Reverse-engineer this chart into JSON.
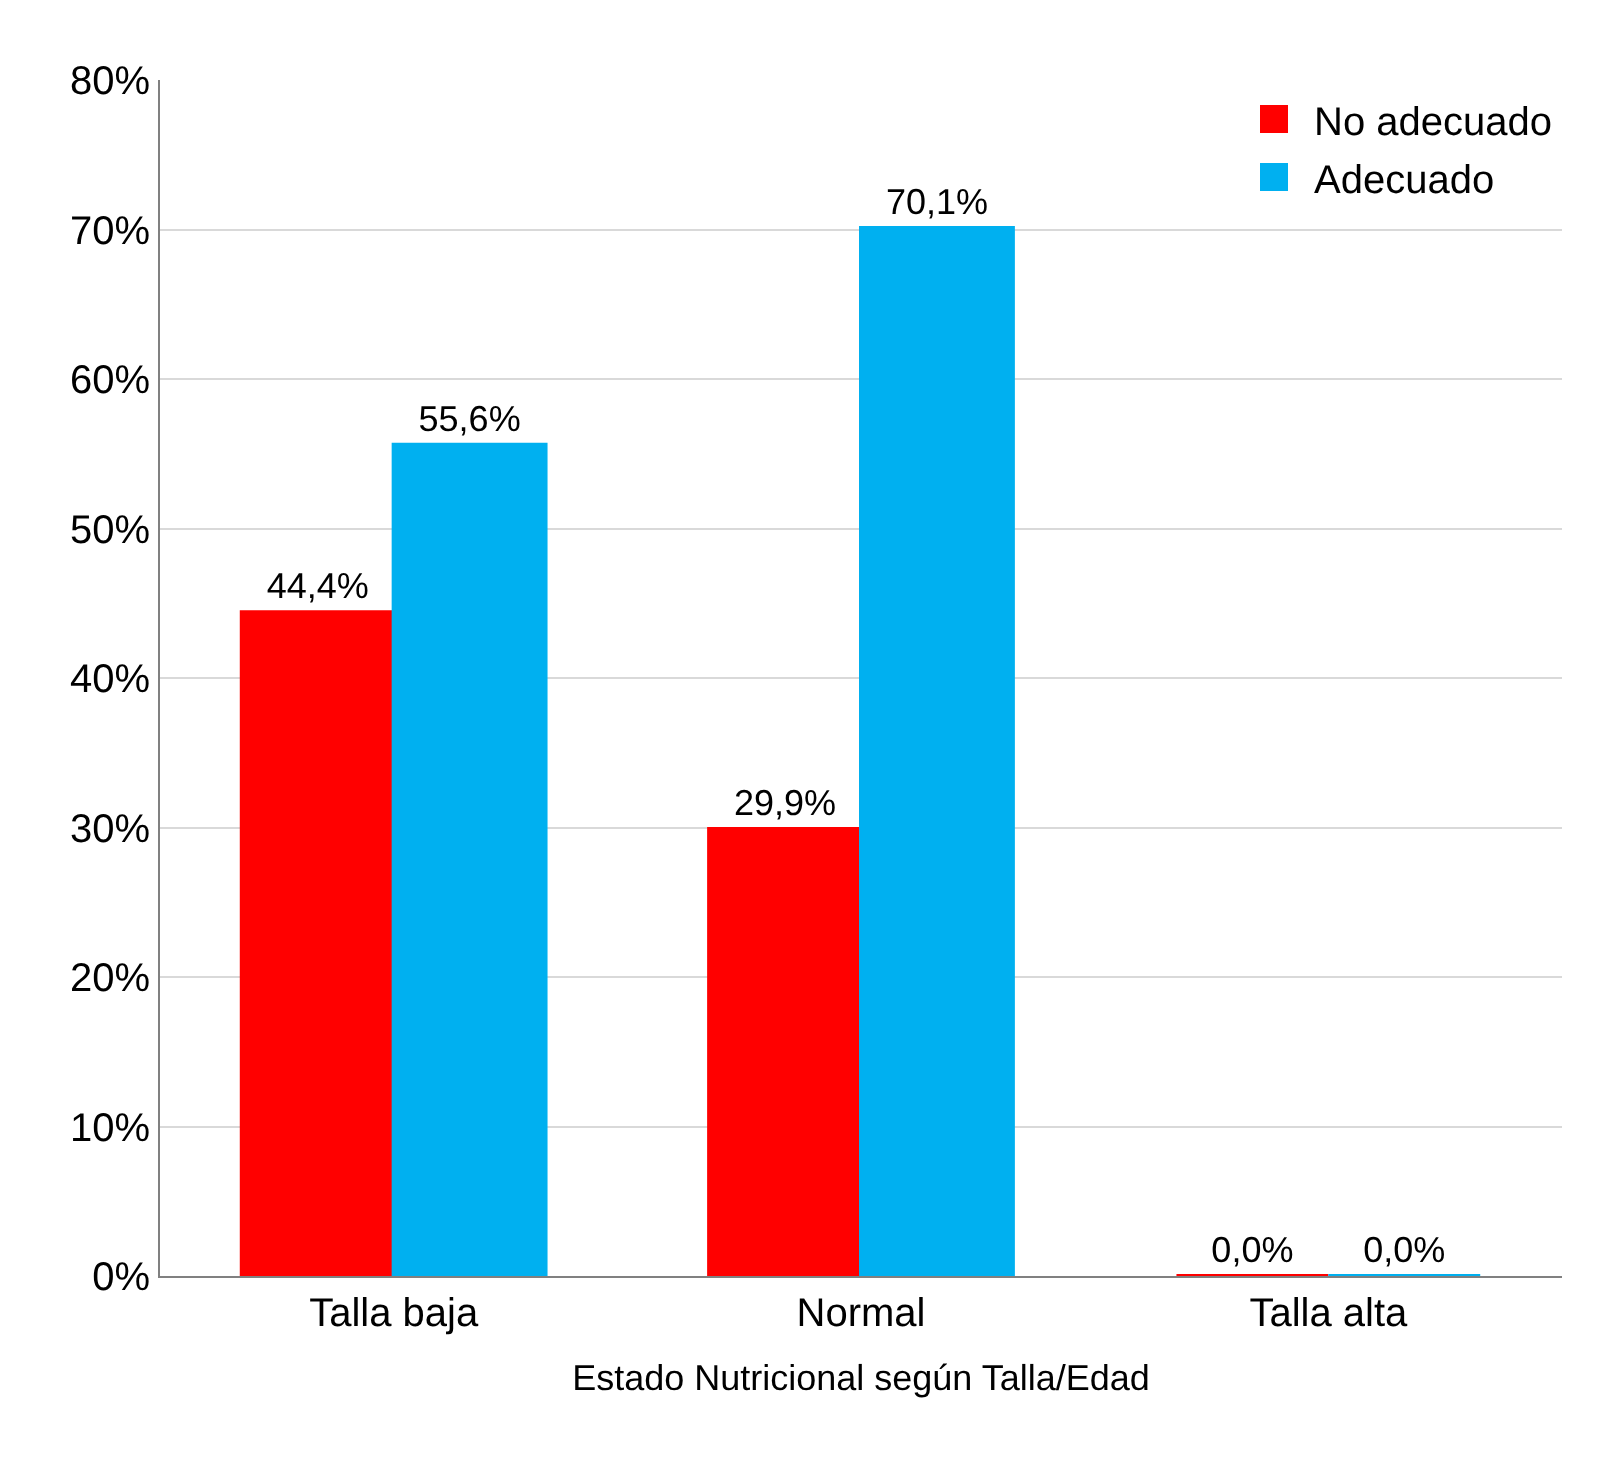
{
  "chart_data": {
    "type": "bar",
    "xlabel": "Estado Nutricional según Talla/Edad",
    "categories": [
      "Talla baja",
      "Normal",
      "Talla alta"
    ],
    "series": [
      {
        "name": "No adecuado",
        "color": "#ff0000",
        "values": [
          44.4,
          29.9,
          0.0
        ],
        "value_labels": [
          "44,4%",
          "29,9%",
          "0,0%"
        ]
      },
      {
        "name": "Adecuado",
        "color": "#00b0f0",
        "values": [
          55.6,
          70.1,
          0.0
        ],
        "value_labels": [
          "55,6%",
          "70,1%",
          "0,0%"
        ]
      }
    ],
    "ylim": [
      0,
      80
    ],
    "yticks": [
      {
        "value": 0,
        "label": "0%"
      },
      {
        "value": 10,
        "label": "10%"
      },
      {
        "value": 20,
        "label": "20%"
      },
      {
        "value": 30,
        "label": "30%"
      },
      {
        "value": 40,
        "label": "40%"
      },
      {
        "value": 50,
        "label": "50%"
      },
      {
        "value": 60,
        "label": "60%"
      },
      {
        "value": 70,
        "label": "70%"
      },
      {
        "value": 80,
        "label": "80%"
      }
    ],
    "grid": "y",
    "legend": "top right"
  }
}
